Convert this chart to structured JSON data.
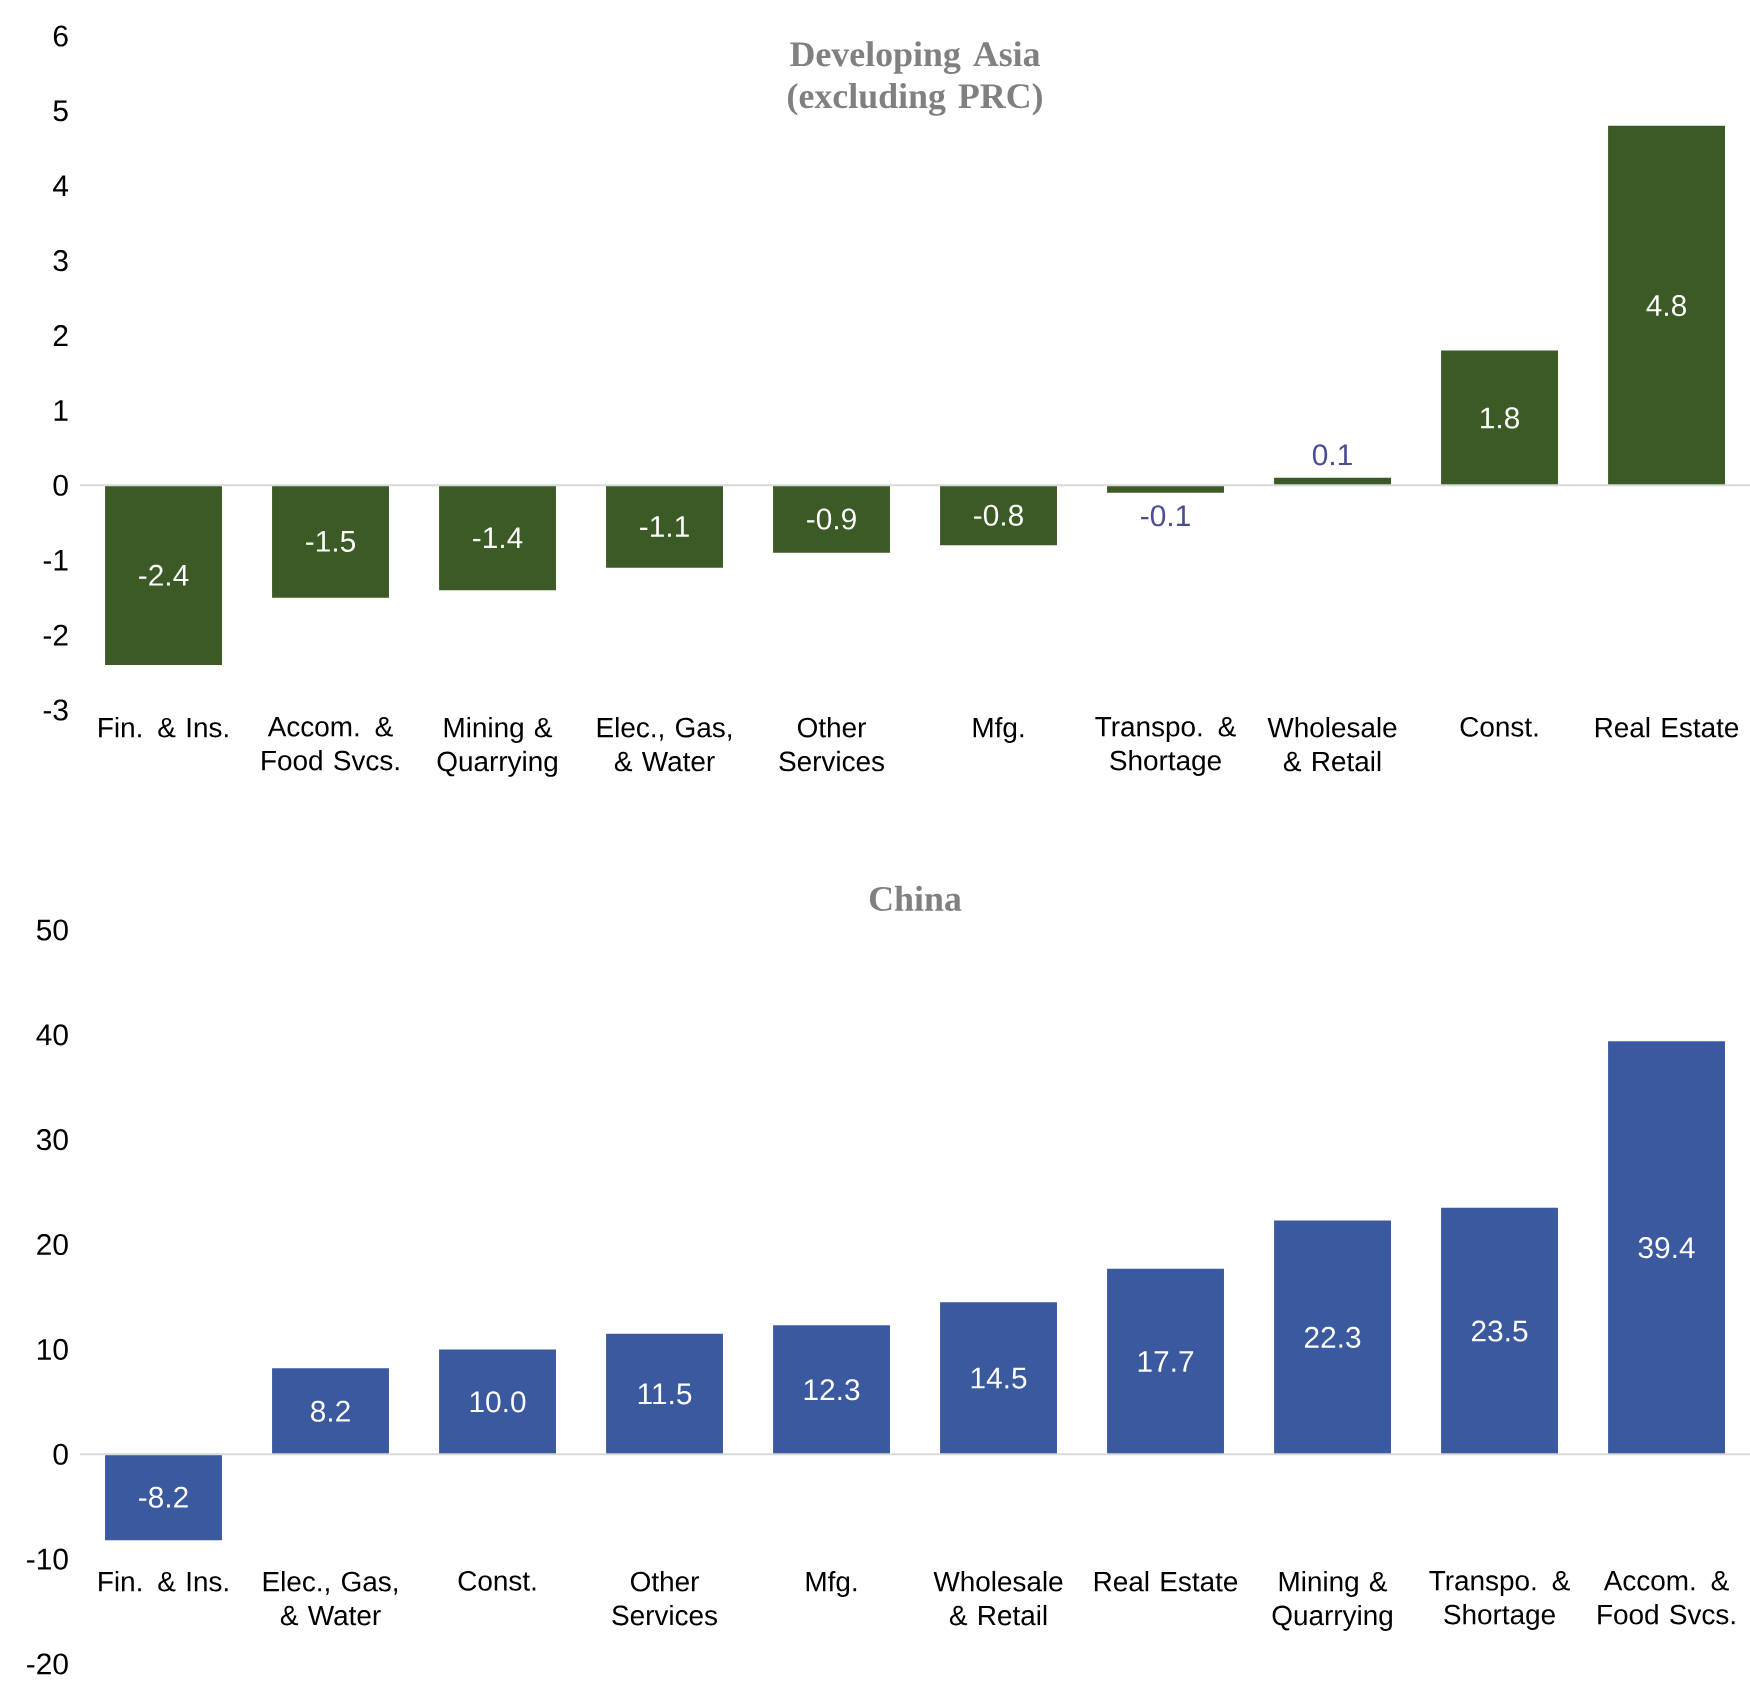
{
  "chart_data": [
    {
      "type": "bar",
      "title": "Developing Asia (excluding PRC)",
      "categories": [
        "Fin. & Ins.",
        "Accom. & Food Svcs.",
        "Mining & Quarrying",
        "Elec., Gas, & Water",
        "Other Services",
        "Mfg.",
        "Transpo. & Shortage",
        "Wholesale & Retail",
        "Const.",
        "Real Estate"
      ],
      "values": [
        -2.4,
        -1.5,
        -1.4,
        -1.1,
        -0.9,
        -0.8,
        -0.1,
        0.1,
        1.8,
        4.8
      ],
      "value_labels": [
        "-2.4",
        "-1.5",
        "-1.4",
        "-1.1",
        "-0.9",
        "-0.8",
        "-0.1",
        "0.1",
        "1.8",
        "4.8"
      ],
      "color": "#3b5a25",
      "ylim": [
        -3,
        6
      ],
      "yticks": [
        -3,
        -2,
        -1,
        0,
        1,
        2,
        3,
        4,
        5,
        6
      ]
    },
    {
      "type": "bar",
      "title": "China",
      "categories": [
        "Fin. & Ins.",
        "Elec., Gas, & Water",
        "Const.",
        "Other Services",
        "Mfg.",
        "Wholesale & Retail",
        "Real Estate",
        "Mining & Quarrying",
        "Transpo. & Shortage",
        "Accom. & Food Svcs."
      ],
      "values": [
        -8.2,
        8.2,
        10.0,
        11.5,
        12.3,
        14.5,
        17.7,
        22.3,
        23.5,
        39.4
      ],
      "value_labels": [
        "-8.2",
        "8.2",
        "10.0",
        "11.5",
        "12.3",
        "14.5",
        "17.7",
        "22.3",
        "23.5",
        "39.4"
      ],
      "color": "#3a599f",
      "ylim": [
        -20,
        50
      ],
      "yticks": [
        -20,
        -10,
        0,
        10,
        20,
        30,
        40,
        50
      ]
    }
  ]
}
